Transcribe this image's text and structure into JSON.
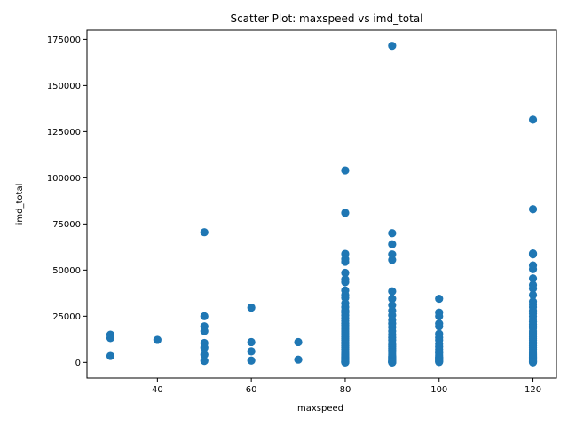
{
  "chart_data": {
    "type": "scatter",
    "title": "Scatter Plot: maxspeed vs imd_total",
    "xlabel": "maxspeed",
    "ylabel": "imd_total",
    "xlim": [
      25,
      125
    ],
    "ylim": [
      -8500,
      180000
    ],
    "xticks": [
      40,
      60,
      80,
      100,
      120
    ],
    "yticks": [
      0,
      25000,
      50000,
      75000,
      100000,
      125000,
      150000,
      175000
    ],
    "grid": false,
    "marker_color": "#1f77b4",
    "x": [
      30,
      30,
      30,
      40,
      50,
      50,
      50,
      50,
      50,
      50,
      50,
      50,
      60,
      60,
      60,
      60,
      70,
      70,
      80,
      80,
      80,
      80,
      80,
      80,
      80,
      80,
      80,
      80,
      80,
      80,
      80,
      80,
      80,
      80,
      80,
      80,
      80,
      80,
      80,
      80,
      80,
      80,
      80,
      80,
      80,
      80,
      80,
      80,
      80,
      80,
      80,
      80,
      80,
      80,
      80,
      80,
      80,
      80,
      80,
      80,
      80,
      80,
      80,
      80,
      80,
      80,
      80,
      90,
      90,
      90,
      90,
      90,
      90,
      90,
      90,
      90,
      90,
      90,
      90,
      90,
      90,
      90,
      90,
      90,
      90,
      90,
      90,
      90,
      90,
      90,
      90,
      90,
      90,
      90,
      90,
      90,
      90,
      90,
      90,
      90,
      90,
      90,
      90,
      100,
      100,
      100,
      100,
      100,
      100,
      100,
      100,
      100,
      100,
      100,
      100,
      100,
      100,
      100,
      100,
      100,
      100,
      100,
      100,
      100,
      120,
      120,
      120,
      120,
      120,
      120,
      120,
      120,
      120,
      120,
      120,
      120,
      120,
      120,
      120,
      120,
      120,
      120,
      120,
      120,
      120,
      120,
      120,
      120,
      120,
      120,
      120,
      120,
      120,
      120,
      120,
      120,
      120,
      120,
      120,
      120,
      120,
      120,
      120,
      120,
      120,
      120,
      120,
      120,
      120
    ],
    "y": [
      15000,
      13200,
      3500,
      12200,
      70500,
      25000,
      19500,
      17000,
      10500,
      8000,
      4200,
      800,
      29700,
      11000,
      6000,
      1000,
      11000,
      1500,
      104000,
      81000,
      58800,
      56000,
      54500,
      48500,
      45000,
      43500,
      39000,
      36500,
      35000,
      32000,
      30000,
      28000,
      27000,
      25500,
      24000,
      22500,
      21000,
      20000,
      19000,
      18000,
      17000,
      16000,
      15000,
      14000,
      13000,
      12000,
      11000,
      10000,
      9000,
      8000,
      7000,
      6000,
      5000,
      4500,
      4000,
      3500,
      3000,
      2500,
      2000,
      1500,
      1200,
      900,
      600,
      300,
      100,
      0,
      200,
      171500,
      70000,
      64000,
      58500,
      55500,
      38500,
      34500,
      31000,
      28000,
      25500,
      23000,
      21000,
      19000,
      17000,
      15000,
      13500,
      12000,
      10500,
      9500,
      8500,
      7500,
      6500,
      5500,
      4500,
      3500,
      3000,
      2500,
      2000,
      1500,
      1000,
      700,
      500,
      300,
      150,
      50,
      0,
      34500,
      27000,
      25000,
      21000,
      19500,
      15500,
      13500,
      12000,
      10000,
      8500,
      7000,
      5500,
      5000,
      4000,
      3000,
      2500,
      2000,
      1500,
      1000,
      500,
      200,
      131500,
      83000,
      59000,
      58500,
      52500,
      50500,
      45500,
      42000,
      40000,
      36500,
      33000,
      31500,
      30000,
      28000,
      26500,
      25000,
      23500,
      22000,
      20500,
      19500,
      18500,
      17000,
      16000,
      15000,
      14000,
      13000,
      12000,
      11000,
      10000,
      9000,
      8000,
      7000,
      6000,
      5000,
      4500,
      4000,
      3500,
      3000,
      2500,
      2000,
      1500,
      1000,
      600,
      300,
      50
    ]
  }
}
